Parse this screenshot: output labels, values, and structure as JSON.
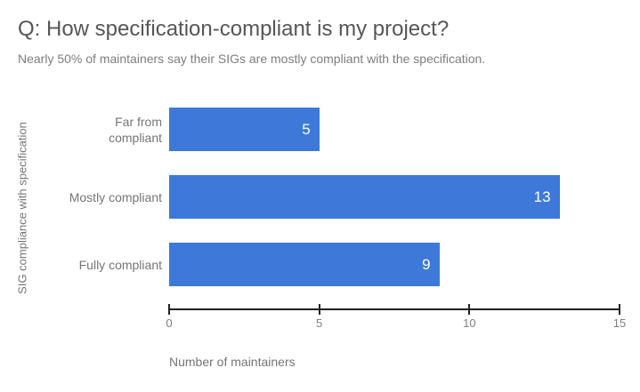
{
  "header": {
    "title": "Q: How specification-compliant is my project?",
    "subtitle": "Nearly 50% of maintainers say their SIGs are mostly compliant with the specification."
  },
  "chart_data": {
    "type": "bar",
    "orientation": "horizontal",
    "title": "Q: How specification-compliant is my project?",
    "subtitle": "Nearly 50% of maintainers say their SIGs are mostly compliant with the specification.",
    "categories": [
      "Far from compliant",
      "Mostly compliant",
      "Fully compliant"
    ],
    "values": [
      5,
      13,
      9
    ],
    "xlabel": "Number of maintainers",
    "ylabel": "SIG compliance with specification",
    "xlim": [
      0,
      15
    ],
    "xticks": [
      0,
      5,
      10,
      15
    ],
    "grid": false,
    "legend": "none",
    "colors": {
      "bar": "#3E79D9",
      "value_label": "#ffffff",
      "axis_line": "#212121",
      "title_text": "#565656",
      "subtitle_text": "#7d7d7d",
      "label_text": "#757575",
      "tick_text": "#7f7f7f"
    }
  }
}
